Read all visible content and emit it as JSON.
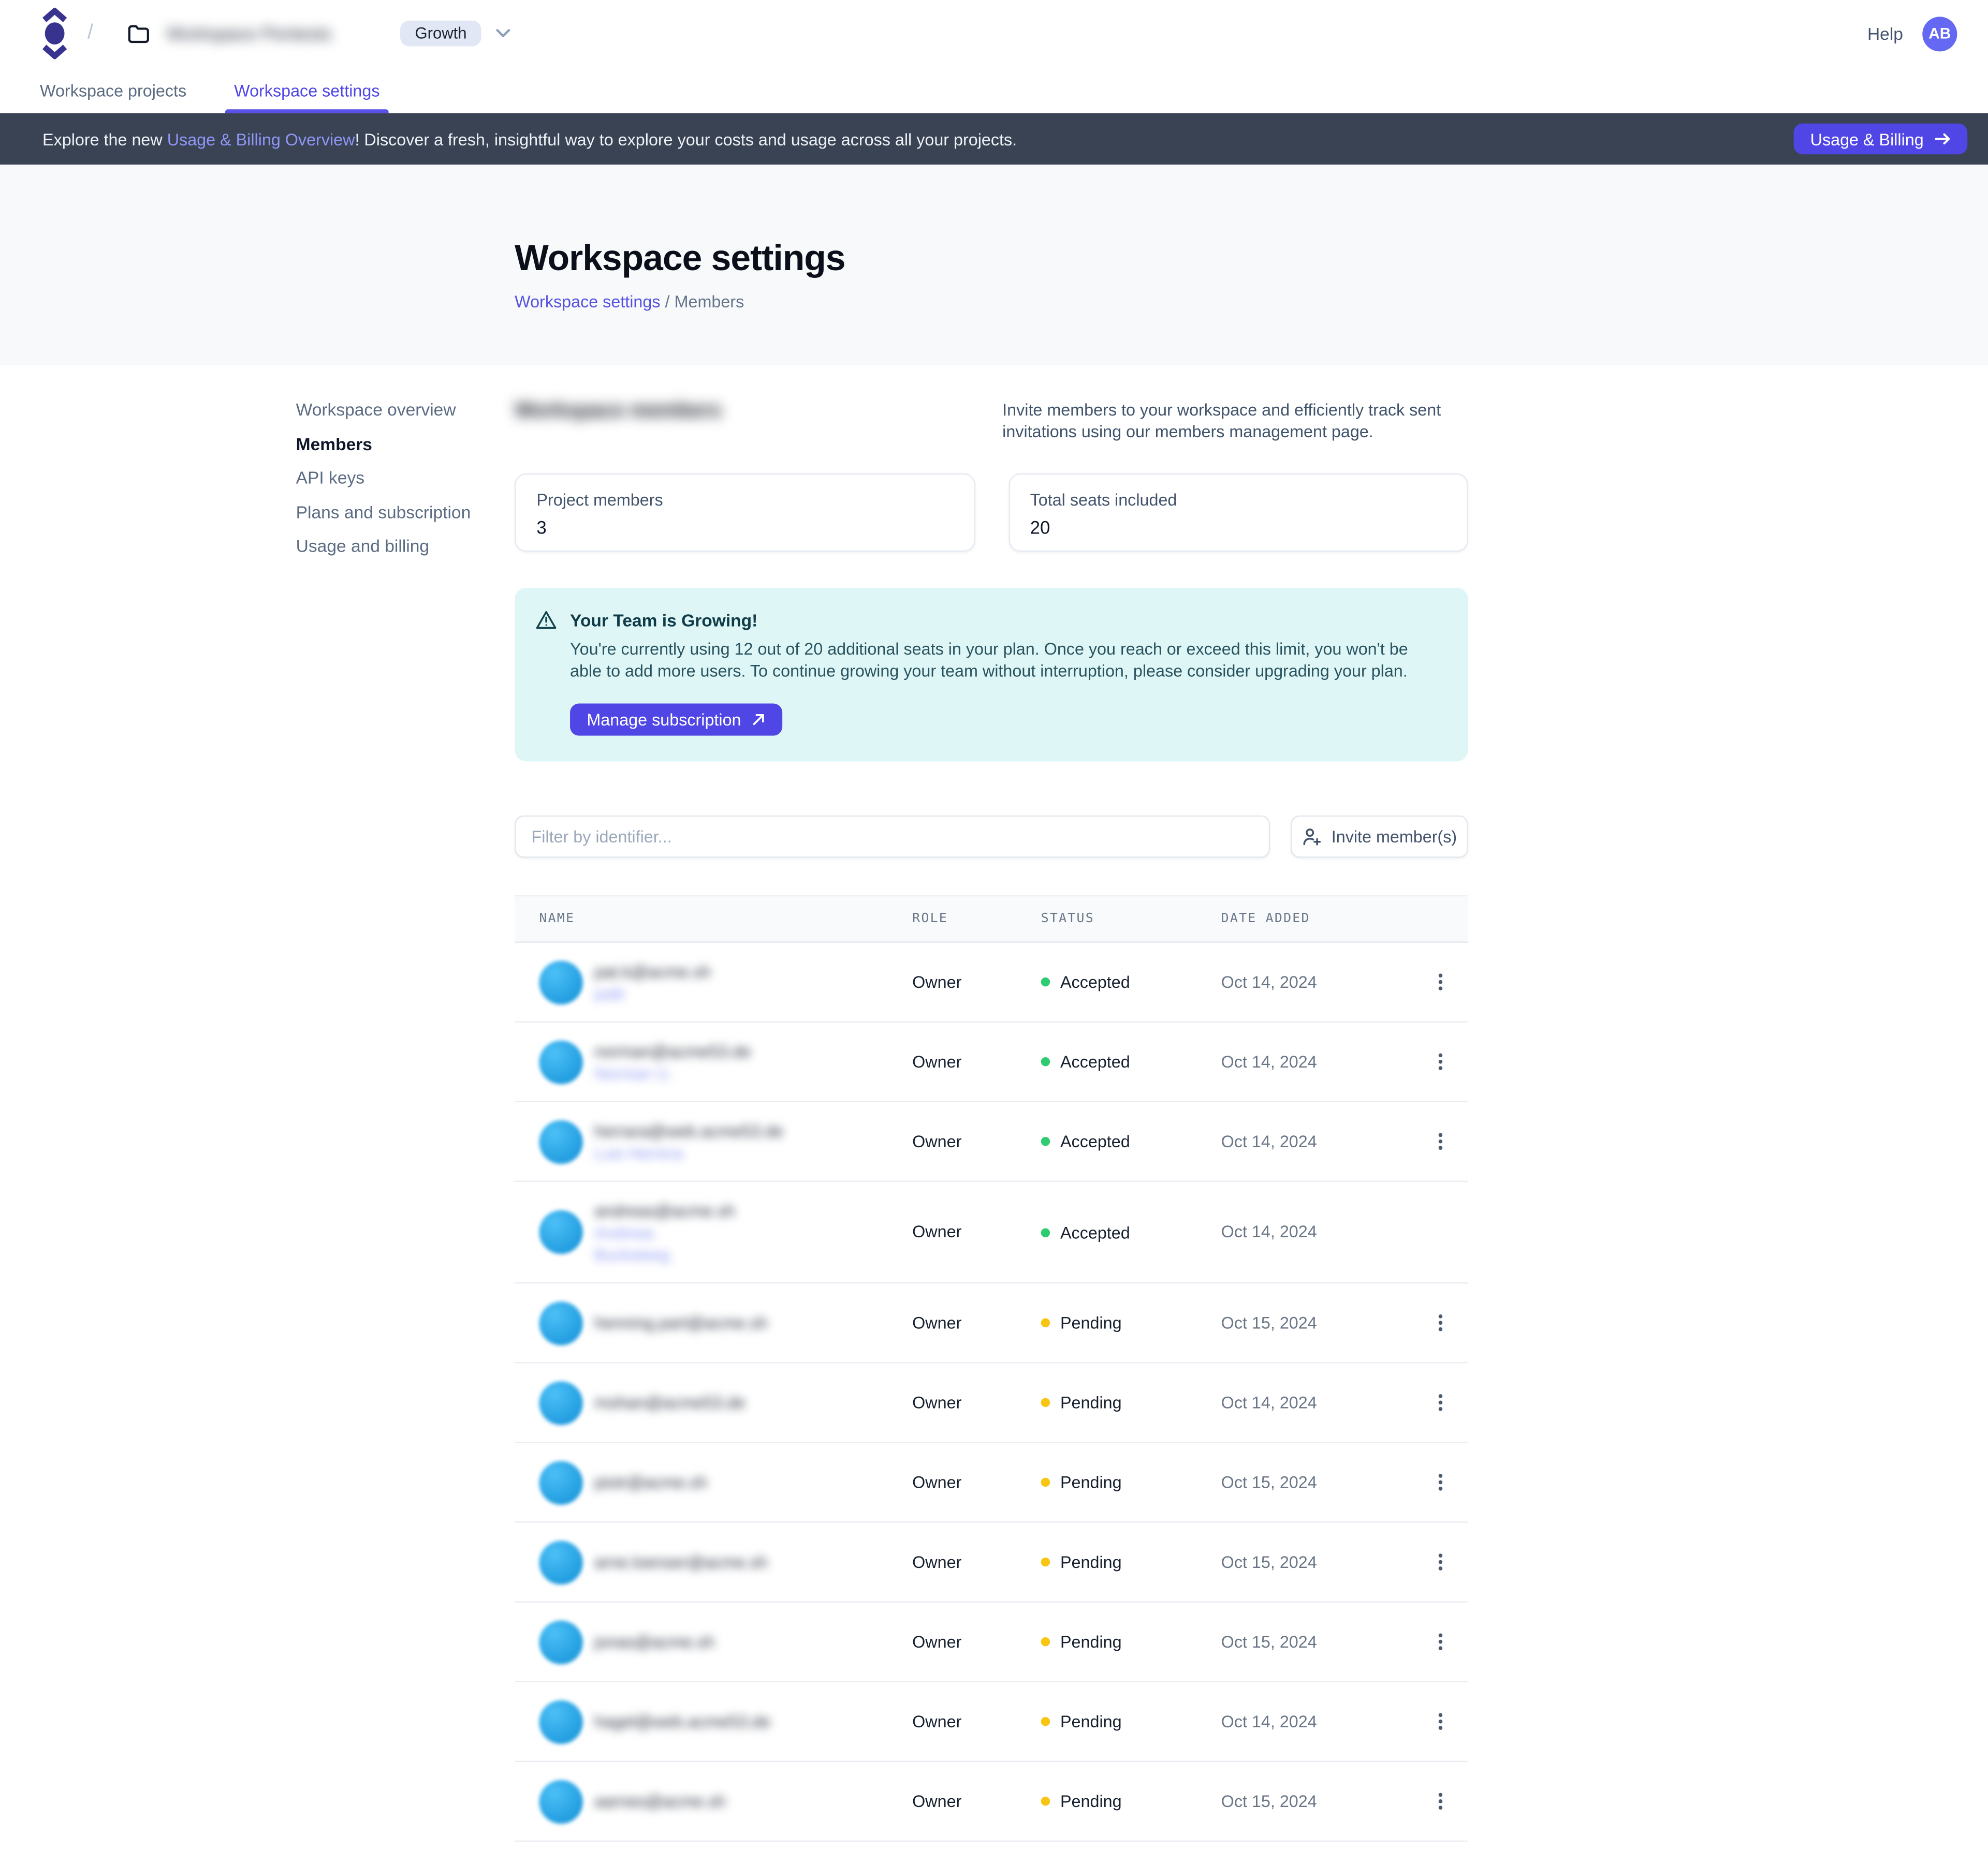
{
  "header": {
    "slash": "/",
    "workspace_name": "Workspace Pentests",
    "workspace_name_blurred": true,
    "plan_badge": "Growth",
    "help_label": "Help",
    "avatar_initials": "AB"
  },
  "tabs": [
    {
      "label": "Workspace projects",
      "active": false
    },
    {
      "label": "Workspace settings",
      "active": true
    }
  ],
  "banner": {
    "text_prefix": "Explore the new ",
    "link_text": "Usage & Billing Overview",
    "text_suffix": "! Discover a fresh, insightful way to explore your costs and usage across all your projects.",
    "button_label": "Usage & Billing"
  },
  "hero": {
    "title": "Workspace settings",
    "breadcrumb_link": "Workspace settings",
    "breadcrumb_sep": "/",
    "breadcrumb_current": "Members"
  },
  "settings_nav": {
    "items": [
      {
        "label": "Workspace overview",
        "slug": "workspace-overview",
        "active": false
      },
      {
        "label": "Members",
        "slug": "members",
        "active": true
      },
      {
        "label": "API keys",
        "slug": "api-keys",
        "active": false
      },
      {
        "label": "Plans and subscription",
        "slug": "plans-and-subscription",
        "active": false
      },
      {
        "label": "Usage and billing",
        "slug": "usage-and-billing",
        "active": false
      }
    ]
  },
  "members_section": {
    "heading": "Workspace members",
    "heading_blurred": true,
    "description": "Invite members to your workspace and efficiently track sent invitations using our members management page."
  },
  "stats_cards": [
    {
      "label": "Project members",
      "value": "3"
    },
    {
      "label": "Total seats included",
      "value": "20"
    }
  ],
  "alert": {
    "title": "Your Team is Growing!",
    "body": "You're currently using 12 out of 20 additional seats in your plan. Once you reach or exceed this limit, you won't be able to add more users. To continue growing your team without interruption, please consider upgrading your plan.",
    "button_label": "Manage subscription"
  },
  "toolbar": {
    "filter_placeholder": "Filter by identifier...",
    "invite_button_label": "Invite member(s)"
  },
  "table": {
    "identity_blurred": true,
    "columns": [
      "NAME",
      "ROLE",
      "STATUS",
      "DATE ADDED"
    ],
    "rows": [
      {
        "email": "pat.k@acme.sh",
        "name_lines": [
          "patk"
        ],
        "role": "Owner",
        "status": "Accepted",
        "date": "Oct 14, 2024",
        "menu": true
      },
      {
        "email": "norman@acme53.de",
        "name_lines": [
          "Norman U."
        ],
        "role": "Owner",
        "status": "Accepted",
        "date": "Oct 14, 2024",
        "menu": true
      },
      {
        "email": "herrara@web.acme53.de",
        "name_lines": [
          "Luis Herrera"
        ],
        "role": "Owner",
        "status": "Accepted",
        "date": "Oct 14, 2024",
        "menu": true
      },
      {
        "email": "andreas@acme.sh",
        "name_lines": [
          "Andreas",
          "Bucksteeg"
        ],
        "role": "Owner",
        "status": "Accepted",
        "date": "Oct 14, 2024",
        "menu": false
      },
      {
        "email": "henning.part@acme.sh",
        "name_lines": [],
        "role": "Owner",
        "status": "Pending",
        "date": "Oct 15, 2024",
        "menu": true
      },
      {
        "email": "mohan@acme53.de",
        "name_lines": [],
        "role": "Owner",
        "status": "Pending",
        "date": "Oct 14, 2024",
        "menu": true
      },
      {
        "email": "piotr@acme.sh",
        "name_lines": [],
        "role": "Owner",
        "status": "Pending",
        "date": "Oct 15, 2024",
        "menu": true
      },
      {
        "email": "arne.loenser@acme.sh",
        "name_lines": [],
        "role": "Owner",
        "status": "Pending",
        "date": "Oct 15, 2024",
        "menu": true
      },
      {
        "email": "jonas@acme.sh",
        "name_lines": [],
        "role": "Owner",
        "status": "Pending",
        "date": "Oct 15, 2024",
        "menu": true
      },
      {
        "email": "hagel@web.acme53.de",
        "name_lines": [],
        "role": "Owner",
        "status": "Pending",
        "date": "Oct 14, 2024",
        "menu": true
      },
      {
        "email": "aarnes@acme.sh",
        "name_lines": [],
        "role": "Owner",
        "status": "Pending",
        "date": "Oct 15, 2024",
        "menu": true
      }
    ]
  },
  "colors": {
    "accent": "#4f46e5",
    "banner_bg": "#3a4354",
    "accepted_dot": "#2ecb70",
    "pending_dot": "#f9c513",
    "alert_bg": "#def7f6",
    "avatar_blue": "#1f9ede"
  }
}
